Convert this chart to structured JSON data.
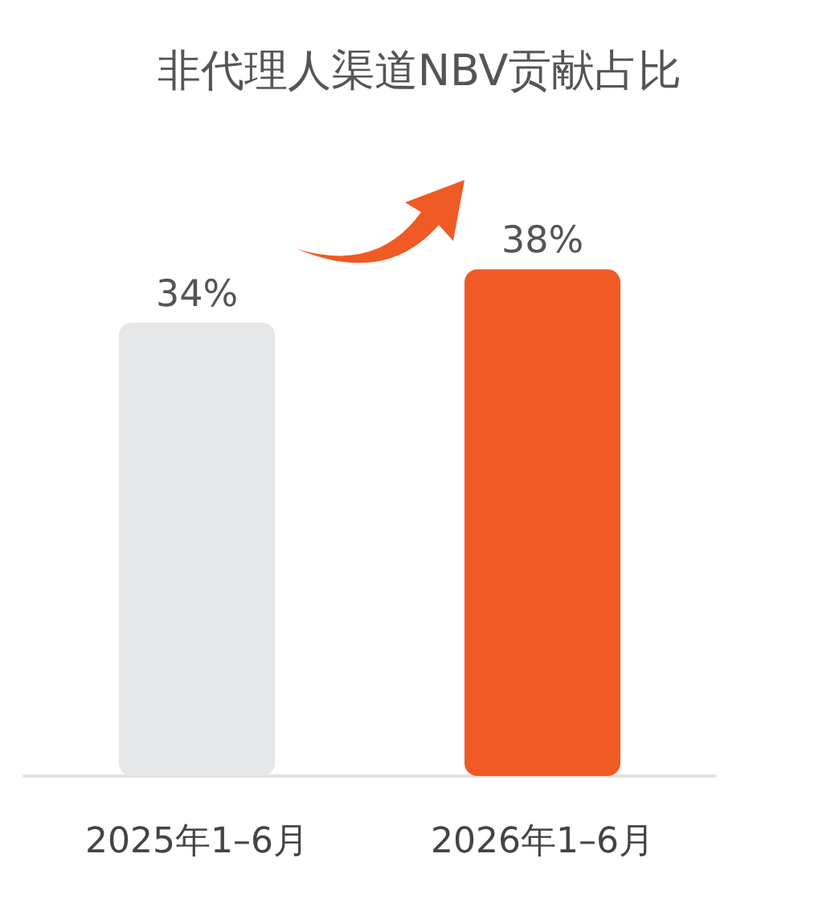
{
  "chart_data": {
    "type": "bar",
    "title": "非代理人渠道NBV贡献占比",
    "categories": [
      "2025年1–6月",
      "2026年1–6月"
    ],
    "values": [
      34,
      38
    ],
    "colors": [
      "#e6e7e9",
      "#f05a24"
    ],
    "value_labels": [
      "34%",
      "38%"
    ]
  }
}
